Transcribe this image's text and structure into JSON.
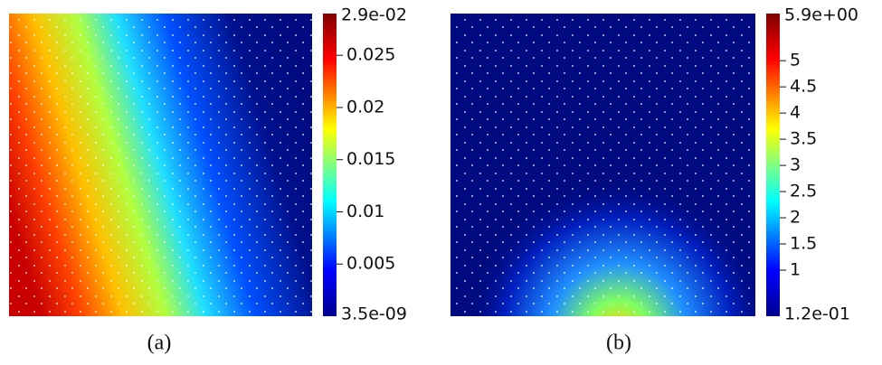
{
  "panels": [
    {
      "caption": "(a)",
      "colorbar": {
        "range": [
          {
            "value": 3.5e-09,
            "label": "3.5e-09"
          },
          {
            "value": 0.029,
            "label": "2.9e-02"
          }
        ],
        "ticks": [
          0.005,
          0.01,
          0.015,
          0.02,
          0.025
        ]
      }
    },
    {
      "caption": "(b)",
      "colorbar": {
        "range": [
          {
            "value": 0.12,
            "label": "1.2e-01"
          },
          {
            "value": 5.9,
            "label": "5.9e+00"
          }
        ],
        "ticks": [
          1,
          1.5,
          2,
          2.5,
          3,
          3.5,
          4,
          4.5,
          5
        ]
      }
    }
  ]
}
